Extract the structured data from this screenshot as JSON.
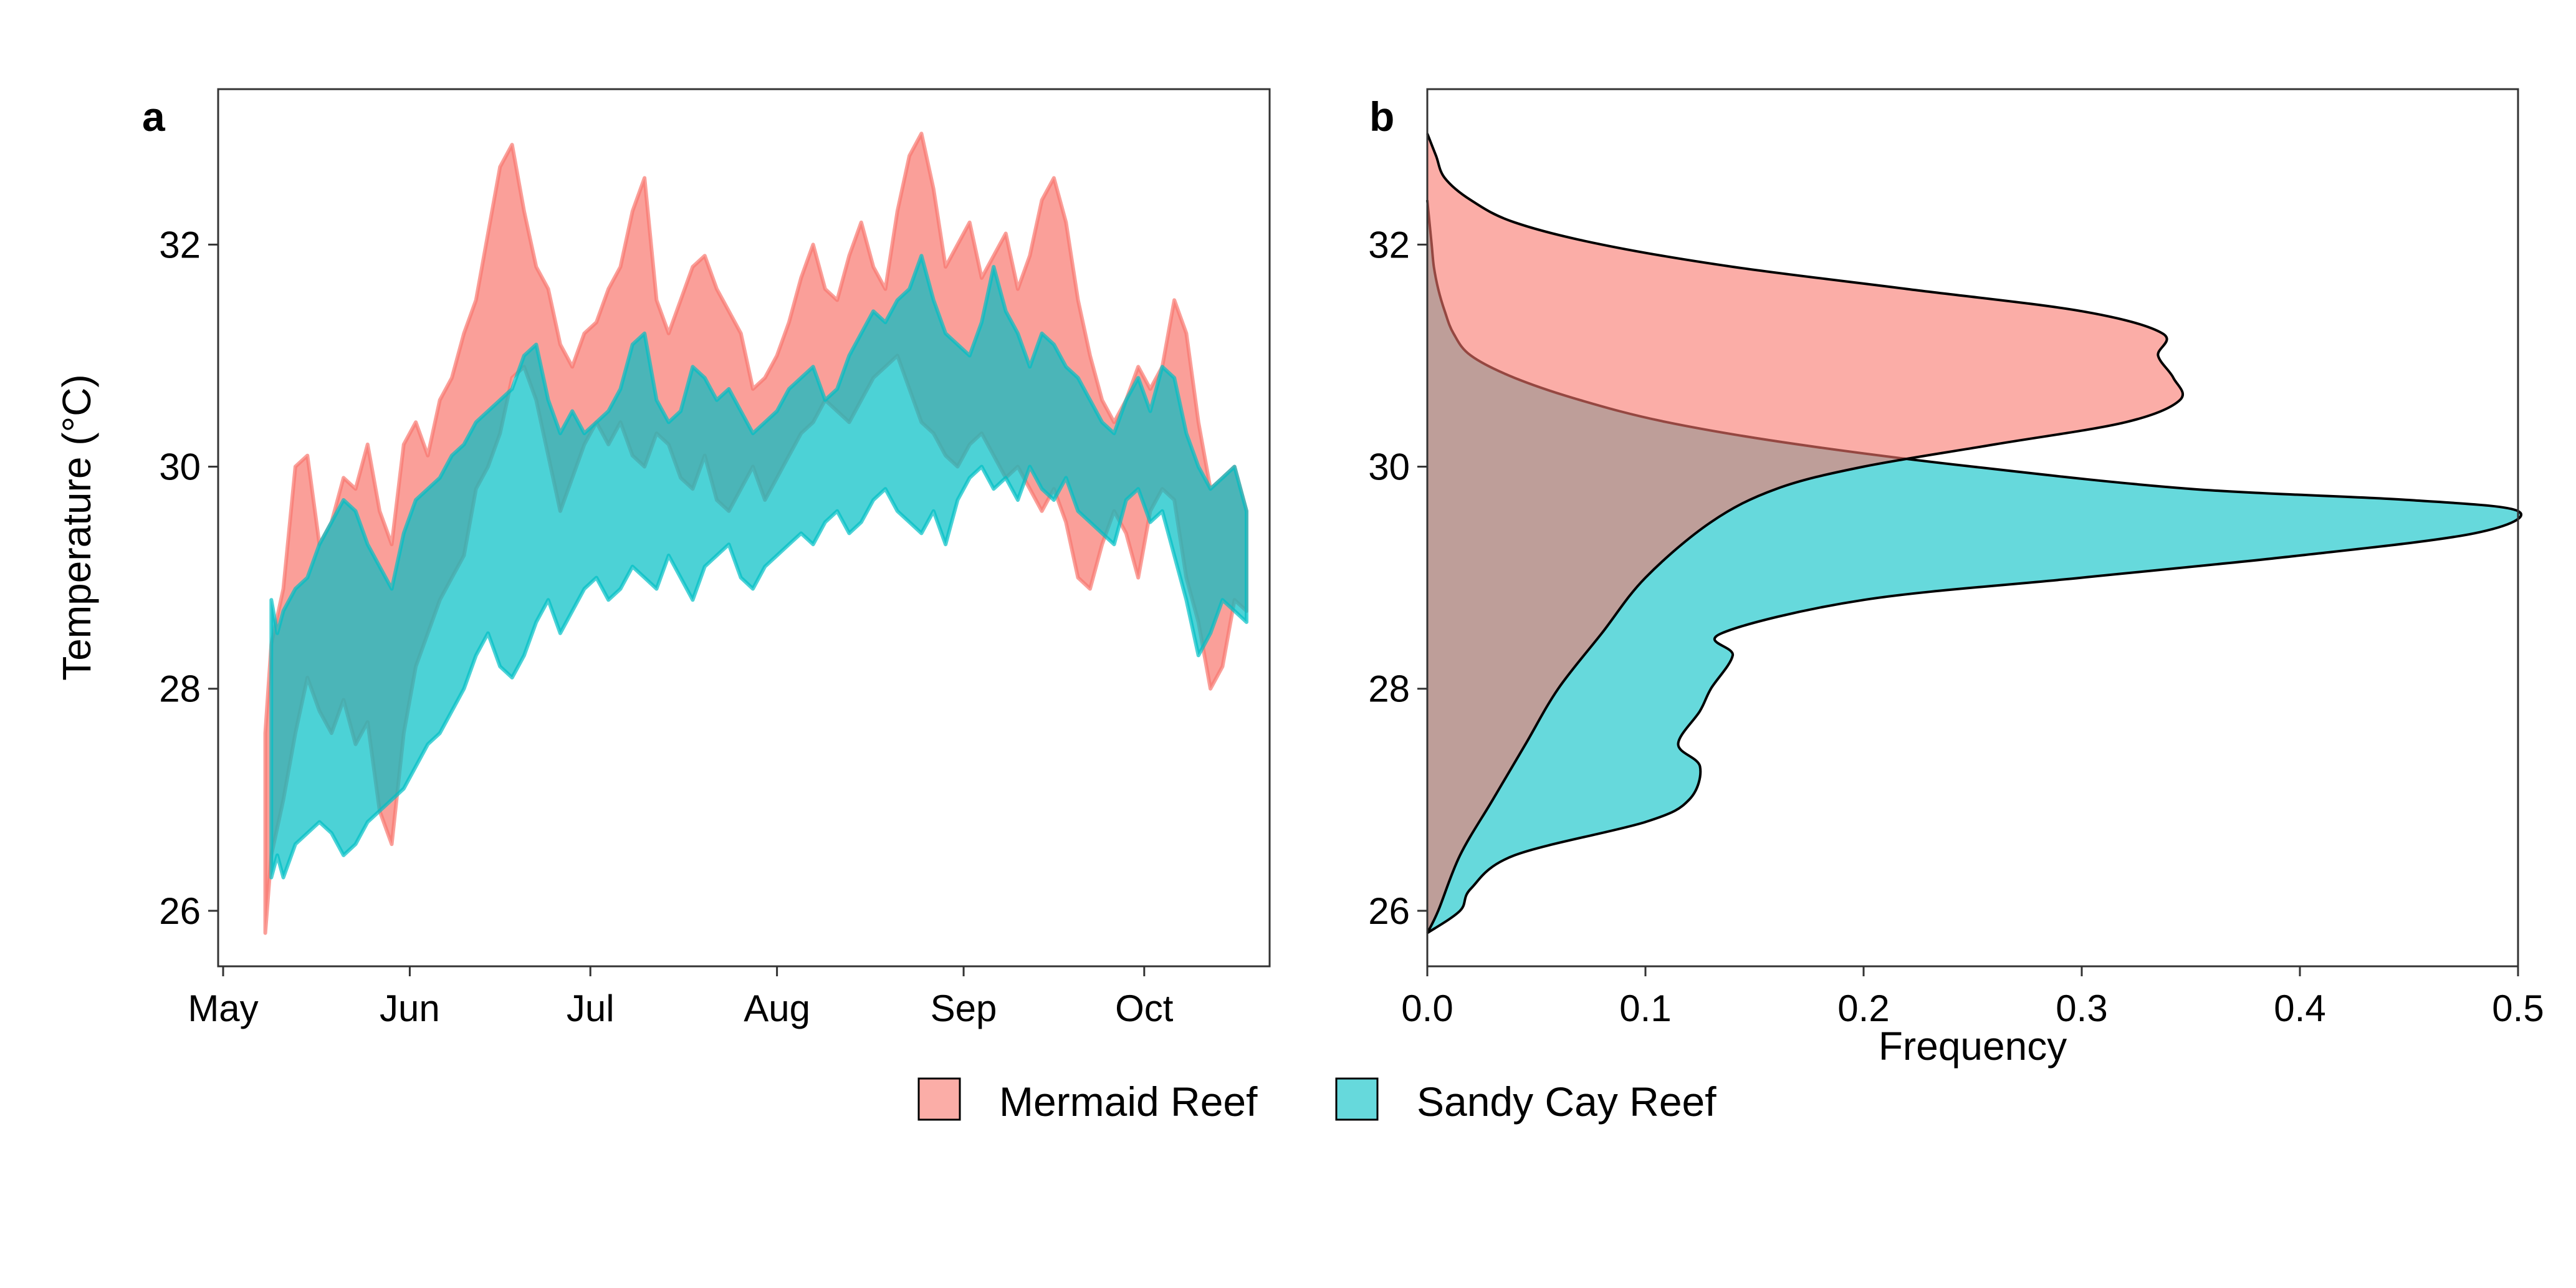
{
  "colors": {
    "mermaid": "#F8766D",
    "sandy": "#00BFC4",
    "mermaid_density_fill": "#F8766D",
    "sandy_density_fill": "#00BFC4"
  },
  "legend": {
    "items": [
      {
        "key": "mermaid",
        "label": "Mermaid Reef"
      },
      {
        "key": "sandy",
        "label": "Sandy Cay Reef"
      }
    ]
  },
  "chart_data": [
    {
      "panel": "a",
      "type": "line",
      "ylabel": "Temperature (°C)",
      "xlabel": "",
      "x_ticks": [
        "May",
        "Jun",
        "Jul",
        "Aug",
        "Sep",
        "Oct"
      ],
      "x_tick_days": [
        0,
        31,
        61,
        92,
        123,
        153
      ],
      "xlim": [
        0,
        173
      ],
      "ylim": [
        25.5,
        33.4
      ],
      "y_ticks": [
        26,
        28,
        30,
        32
      ],
      "grid": false,
      "series": [
        {
          "name": "Mermaid Reef",
          "key": "mermaid",
          "x_unit": "day of season from May 1",
          "x": [
            7,
            8,
            10,
            12,
            14,
            16,
            18,
            20,
            22,
            24,
            26,
            28,
            30,
            32,
            34,
            36,
            38,
            40,
            42,
            44,
            46,
            48,
            50,
            52,
            54,
            56,
            58,
            60,
            62,
            64,
            66,
            68,
            70,
            72,
            74,
            76,
            78,
            80,
            82,
            84,
            86,
            88,
            90,
            92,
            94,
            96,
            98,
            100,
            102,
            104,
            106,
            108,
            110,
            112,
            114,
            116,
            118,
            120,
            122,
            124,
            126,
            128,
            130,
            132,
            134,
            136,
            138,
            140,
            142,
            144,
            146,
            148,
            150,
            152,
            154,
            156,
            158,
            160,
            162,
            164,
            166,
            168,
            170
          ],
          "low": [
            25.8,
            26.5,
            27.0,
            27.6,
            28.1,
            27.8,
            27.6,
            27.9,
            27.5,
            27.7,
            26.9,
            26.6,
            27.6,
            28.2,
            28.5,
            28.8,
            29.0,
            29.2,
            29.8,
            30.0,
            30.3,
            30.8,
            30.9,
            30.6,
            30.1,
            29.6,
            29.9,
            30.2,
            30.4,
            30.2,
            30.4,
            30.1,
            30.0,
            30.3,
            30.2,
            29.9,
            29.8,
            30.1,
            29.7,
            29.6,
            29.8,
            30.0,
            29.7,
            29.9,
            30.1,
            30.3,
            30.4,
            30.6,
            30.5,
            30.4,
            30.6,
            30.8,
            30.9,
            31.0,
            30.7,
            30.4,
            30.3,
            30.1,
            30.0,
            30.2,
            30.3,
            30.1,
            29.9,
            30.0,
            29.8,
            29.6,
            29.8,
            29.5,
            29.0,
            28.9,
            29.3,
            29.6,
            29.4,
            29.0,
            29.6,
            29.8,
            29.7,
            29.0,
            28.6,
            28.0,
            28.2,
            28.8,
            28.7
          ],
          "high": [
            27.6,
            28.4,
            28.9,
            30.0,
            30.1,
            29.3,
            29.5,
            29.9,
            29.8,
            30.2,
            29.6,
            29.3,
            30.2,
            30.4,
            30.1,
            30.6,
            30.8,
            31.2,
            31.5,
            32.1,
            32.7,
            32.9,
            32.3,
            31.8,
            31.6,
            31.1,
            30.9,
            31.2,
            31.3,
            31.6,
            31.8,
            32.3,
            32.6,
            31.5,
            31.2,
            31.5,
            31.8,
            31.9,
            31.6,
            31.4,
            31.2,
            30.7,
            30.8,
            31.0,
            31.3,
            31.7,
            32.0,
            31.6,
            31.5,
            31.9,
            32.2,
            31.8,
            31.6,
            32.3,
            32.8,
            33.0,
            32.5,
            31.8,
            32.0,
            32.2,
            31.7,
            31.9,
            32.1,
            31.6,
            31.9,
            32.4,
            32.6,
            32.2,
            31.5,
            31.0,
            30.6,
            30.4,
            30.6,
            30.9,
            30.7,
            30.9,
            31.5,
            31.2,
            30.4,
            29.8,
            29.9,
            30.0,
            29.6
          ]
        },
        {
          "name": "Sandy Cay Reef",
          "key": "sandy",
          "x_unit": "day of season from May 1",
          "x": [
            8,
            9,
            10,
            12,
            14,
            16,
            18,
            20,
            22,
            24,
            26,
            28,
            30,
            32,
            34,
            36,
            38,
            40,
            42,
            44,
            46,
            48,
            50,
            52,
            54,
            56,
            58,
            60,
            62,
            64,
            66,
            68,
            70,
            72,
            74,
            76,
            78,
            80,
            82,
            84,
            86,
            88,
            90,
            92,
            94,
            96,
            98,
            100,
            102,
            104,
            106,
            108,
            110,
            112,
            114,
            116,
            118,
            120,
            122,
            124,
            126,
            128,
            130,
            132,
            134,
            136,
            138,
            140,
            142,
            144,
            146,
            148,
            150,
            152,
            154,
            156,
            158,
            160,
            162,
            164,
            166,
            168,
            170
          ],
          "low": [
            26.3,
            26.5,
            26.3,
            26.6,
            26.7,
            26.8,
            26.7,
            26.5,
            26.6,
            26.8,
            26.9,
            27.0,
            27.1,
            27.3,
            27.5,
            27.6,
            27.8,
            28.0,
            28.3,
            28.5,
            28.2,
            28.1,
            28.3,
            28.6,
            28.8,
            28.5,
            28.7,
            28.9,
            29.0,
            28.8,
            28.9,
            29.1,
            29.0,
            28.9,
            29.2,
            29.0,
            28.8,
            29.1,
            29.2,
            29.3,
            29.0,
            28.9,
            29.1,
            29.2,
            29.3,
            29.4,
            29.3,
            29.5,
            29.6,
            29.4,
            29.5,
            29.7,
            29.8,
            29.6,
            29.5,
            29.4,
            29.6,
            29.3,
            29.7,
            29.9,
            30.0,
            29.8,
            29.9,
            29.7,
            30.0,
            29.8,
            29.7,
            29.9,
            29.6,
            29.5,
            29.4,
            29.3,
            29.7,
            29.8,
            29.5,
            29.6,
            29.2,
            28.8,
            28.3,
            28.5,
            28.8,
            28.7,
            28.6
          ],
          "high": [
            28.8,
            28.5,
            28.7,
            28.9,
            29.0,
            29.3,
            29.5,
            29.7,
            29.6,
            29.3,
            29.1,
            28.9,
            29.4,
            29.7,
            29.8,
            29.9,
            30.1,
            30.2,
            30.4,
            30.5,
            30.6,
            30.7,
            31.0,
            31.1,
            30.6,
            30.3,
            30.5,
            30.3,
            30.4,
            30.5,
            30.7,
            31.1,
            31.2,
            30.6,
            30.4,
            30.5,
            30.9,
            30.8,
            30.6,
            30.7,
            30.5,
            30.3,
            30.4,
            30.5,
            30.7,
            30.8,
            30.9,
            30.6,
            30.7,
            31.0,
            31.2,
            31.4,
            31.3,
            31.5,
            31.6,
            31.9,
            31.5,
            31.2,
            31.1,
            31.0,
            31.3,
            31.8,
            31.4,
            31.2,
            30.9,
            31.2,
            31.1,
            30.9,
            30.8,
            30.6,
            30.4,
            30.3,
            30.6,
            30.8,
            30.5,
            30.9,
            30.8,
            30.3,
            30.0,
            29.8,
            29.9,
            30.0,
            29.6
          ]
        }
      ]
    },
    {
      "panel": "b",
      "type": "area",
      "xlabel": "Frequency",
      "ylabel": "",
      "xlim": [
        0,
        0.5
      ],
      "ylim": [
        25.5,
        33.4
      ],
      "x_ticks": [
        "0.0",
        "0.1",
        "0.2",
        "0.3",
        "0.4",
        "0.5"
      ],
      "x_tick_values": [
        0,
        0.1,
        0.2,
        0.3,
        0.4,
        0.5
      ],
      "y_ticks": [
        26,
        28,
        30,
        32
      ],
      "grid": false,
      "series": [
        {
          "name": "Mermaid Reef",
          "key": "mermaid",
          "temperature": [
            25.8,
            26.0,
            26.5,
            27.0,
            27.5,
            28.0,
            28.5,
            29.0,
            29.5,
            29.8,
            30.0,
            30.2,
            30.4,
            30.6,
            30.8,
            31.0,
            31.2,
            31.4,
            31.6,
            31.8,
            32.0,
            32.2,
            32.4,
            32.6,
            32.8,
            33.0
          ],
          "density": [
            0.0,
            0.005,
            0.015,
            0.03,
            0.045,
            0.06,
            0.08,
            0.1,
            0.13,
            0.16,
            0.2,
            0.26,
            0.32,
            0.345,
            0.342,
            0.335,
            0.337,
            0.3,
            0.22,
            0.14,
            0.08,
            0.04,
            0.02,
            0.008,
            0.004,
            0.0
          ]
        },
        {
          "name": "Sandy Cay Reef",
          "key": "sandy",
          "temperature": [
            25.8,
            26.0,
            26.2,
            26.5,
            26.8,
            27.0,
            27.3,
            27.5,
            27.8,
            28.0,
            28.3,
            28.5,
            28.8,
            29.0,
            29.2,
            29.4,
            29.6,
            29.7,
            29.8,
            30.0,
            30.2,
            30.4,
            30.6,
            30.8,
            31.0,
            31.2,
            31.4,
            31.6,
            31.8,
            32.0,
            32.2,
            32.4
          ],
          "density": [
            0.0,
            0.015,
            0.02,
            0.04,
            0.1,
            0.12,
            0.125,
            0.115,
            0.125,
            0.13,
            0.14,
            0.135,
            0.2,
            0.3,
            0.4,
            0.48,
            0.5,
            0.45,
            0.35,
            0.25,
            0.17,
            0.11,
            0.07,
            0.04,
            0.02,
            0.012,
            0.008,
            0.005,
            0.003,
            0.002,
            0.001,
            0.0
          ]
        }
      ]
    }
  ]
}
